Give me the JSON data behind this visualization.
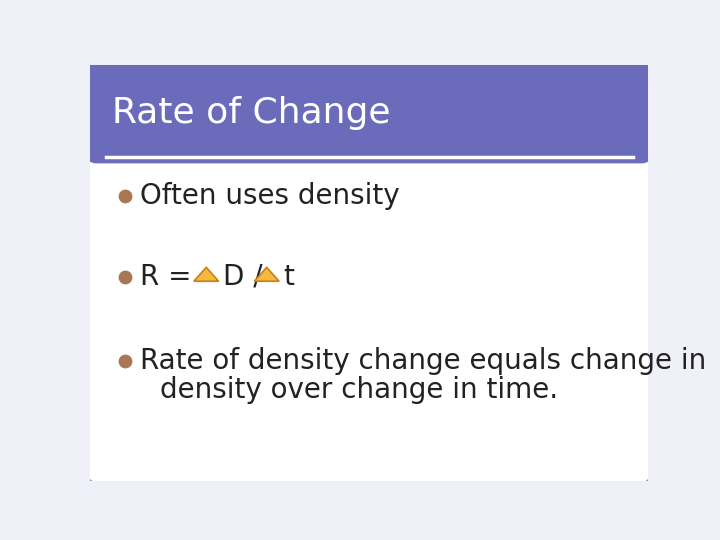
{
  "title": "Rate of Change",
  "title_bg_color": "#6B6BBB",
  "title_text_color": "#ffffff",
  "body_bg_color": "#ffffff",
  "border_color": "#7799AA",
  "bullet_color": "#AA7755",
  "bullet1": "Often uses density",
  "bullet2_r": "R =  ",
  "bullet2_d": "D /  ",
  "bullet2_t": "t",
  "bullet3_line1": "Rate of density change equals change in",
  "bullet3_line2": "density over change in time.",
  "text_color": "#222222",
  "triangle_fill": "#F5B942",
  "triangle_edge": "#C88010",
  "font_size_title": 26,
  "font_size_body": 20,
  "slide_bg": "#f0f0f8"
}
